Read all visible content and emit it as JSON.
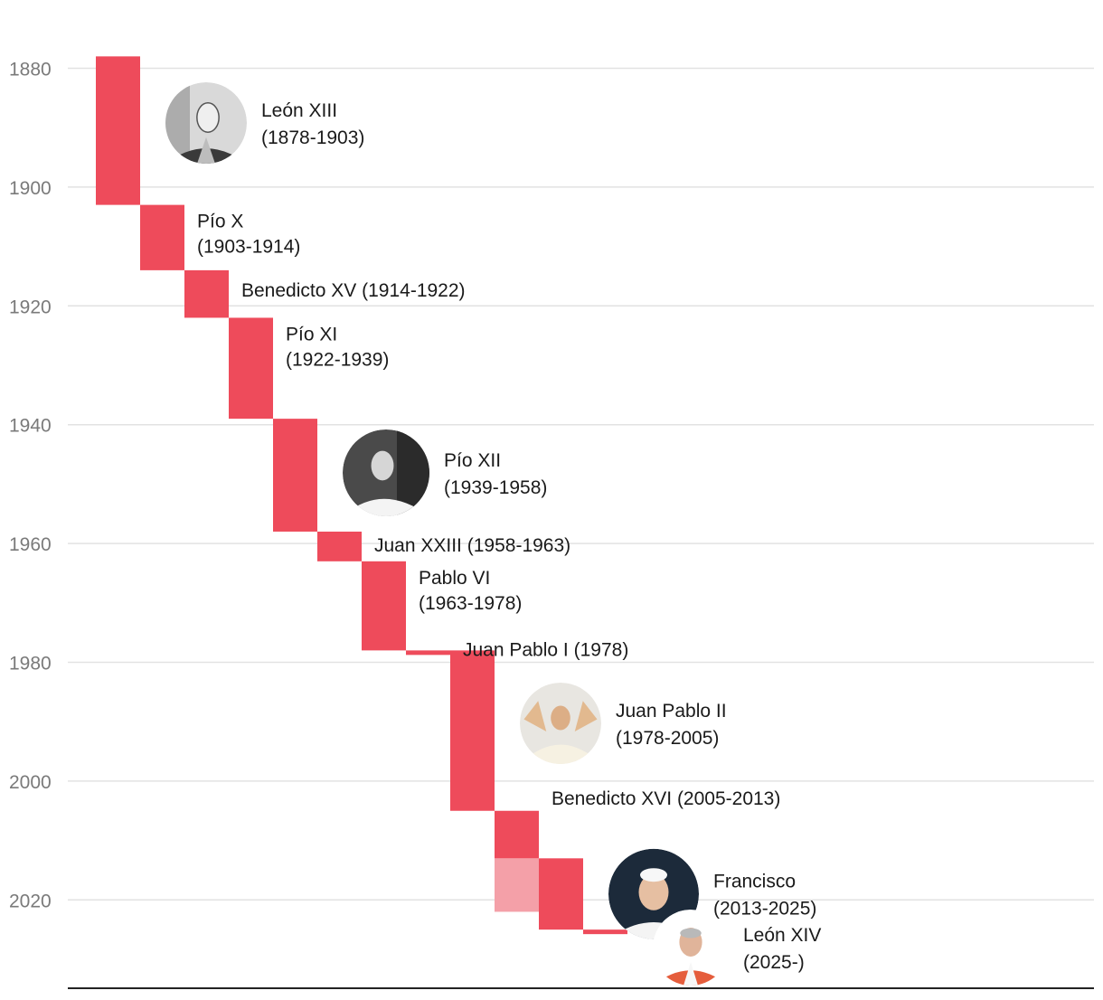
{
  "chart_data": {
    "type": "bar",
    "subtype": "timeline-staircase",
    "title": "",
    "xlabel": "",
    "ylabel": "",
    "y_axis": {
      "min": 1878,
      "max": 2030,
      "ticks": [
        1880,
        1900,
        1920,
        1940,
        1960,
        1980,
        2000,
        2020
      ]
    },
    "bar_color": "#ee4b5b",
    "highlight_color": "#f4a0a8",
    "series": [
      {
        "name": "León XIII",
        "years": "(1878-1903)",
        "start": 1878,
        "end": 1903,
        "portrait": "portrait-leon-xiii",
        "label_lines": 2
      },
      {
        "name": "Pío X",
        "years": "(1903-1914)",
        "start": 1903,
        "end": 1914,
        "portrait": null,
        "label_lines": 2
      },
      {
        "name": "Benedicto XV",
        "years": "(1914-1922)",
        "start": 1914,
        "end": 1922,
        "portrait": null,
        "label_lines": 1
      },
      {
        "name": "Pío XI",
        "years": "(1922-1939)",
        "start": 1922,
        "end": 1939,
        "portrait": null,
        "label_lines": 2
      },
      {
        "name": "Pío XII",
        "years": "(1939-1958)",
        "start": 1939,
        "end": 1958,
        "portrait": "portrait-pio-xii",
        "label_lines": 2
      },
      {
        "name": "Juan XXIII",
        "years": "(1958-1963)",
        "start": 1958,
        "end": 1963,
        "portrait": null,
        "label_lines": 1
      },
      {
        "name": "Pablo VI",
        "years": "(1963-1978)",
        "start": 1963,
        "end": 1978,
        "portrait": null,
        "label_lines": 2
      },
      {
        "name": "Juan Pablo I",
        "years": "(1978)",
        "start": 1978,
        "end": 1978.5,
        "portrait": null,
        "label_lines": 1
      },
      {
        "name": "Juan Pablo II",
        "years": "(1978-2005)",
        "start": 1978,
        "end": 2005,
        "portrait": "portrait-juan-pablo-ii",
        "label_lines": 2
      },
      {
        "name": "Benedicto XVI",
        "years": "(2005-2013)",
        "start": 2005,
        "end": 2013,
        "portrait": null,
        "label_lines": 1,
        "overlap_to": 2022
      },
      {
        "name": "Francisco",
        "years": "(2013-2025)",
        "start": 2013,
        "end": 2025,
        "portrait": "portrait-francisco",
        "label_lines": 2
      },
      {
        "name": "León XIV",
        "years": "(2025-)",
        "start": 2025,
        "end": 2025.5,
        "portrait": "portrait-leon-xiv",
        "label_lines": 2
      }
    ]
  }
}
